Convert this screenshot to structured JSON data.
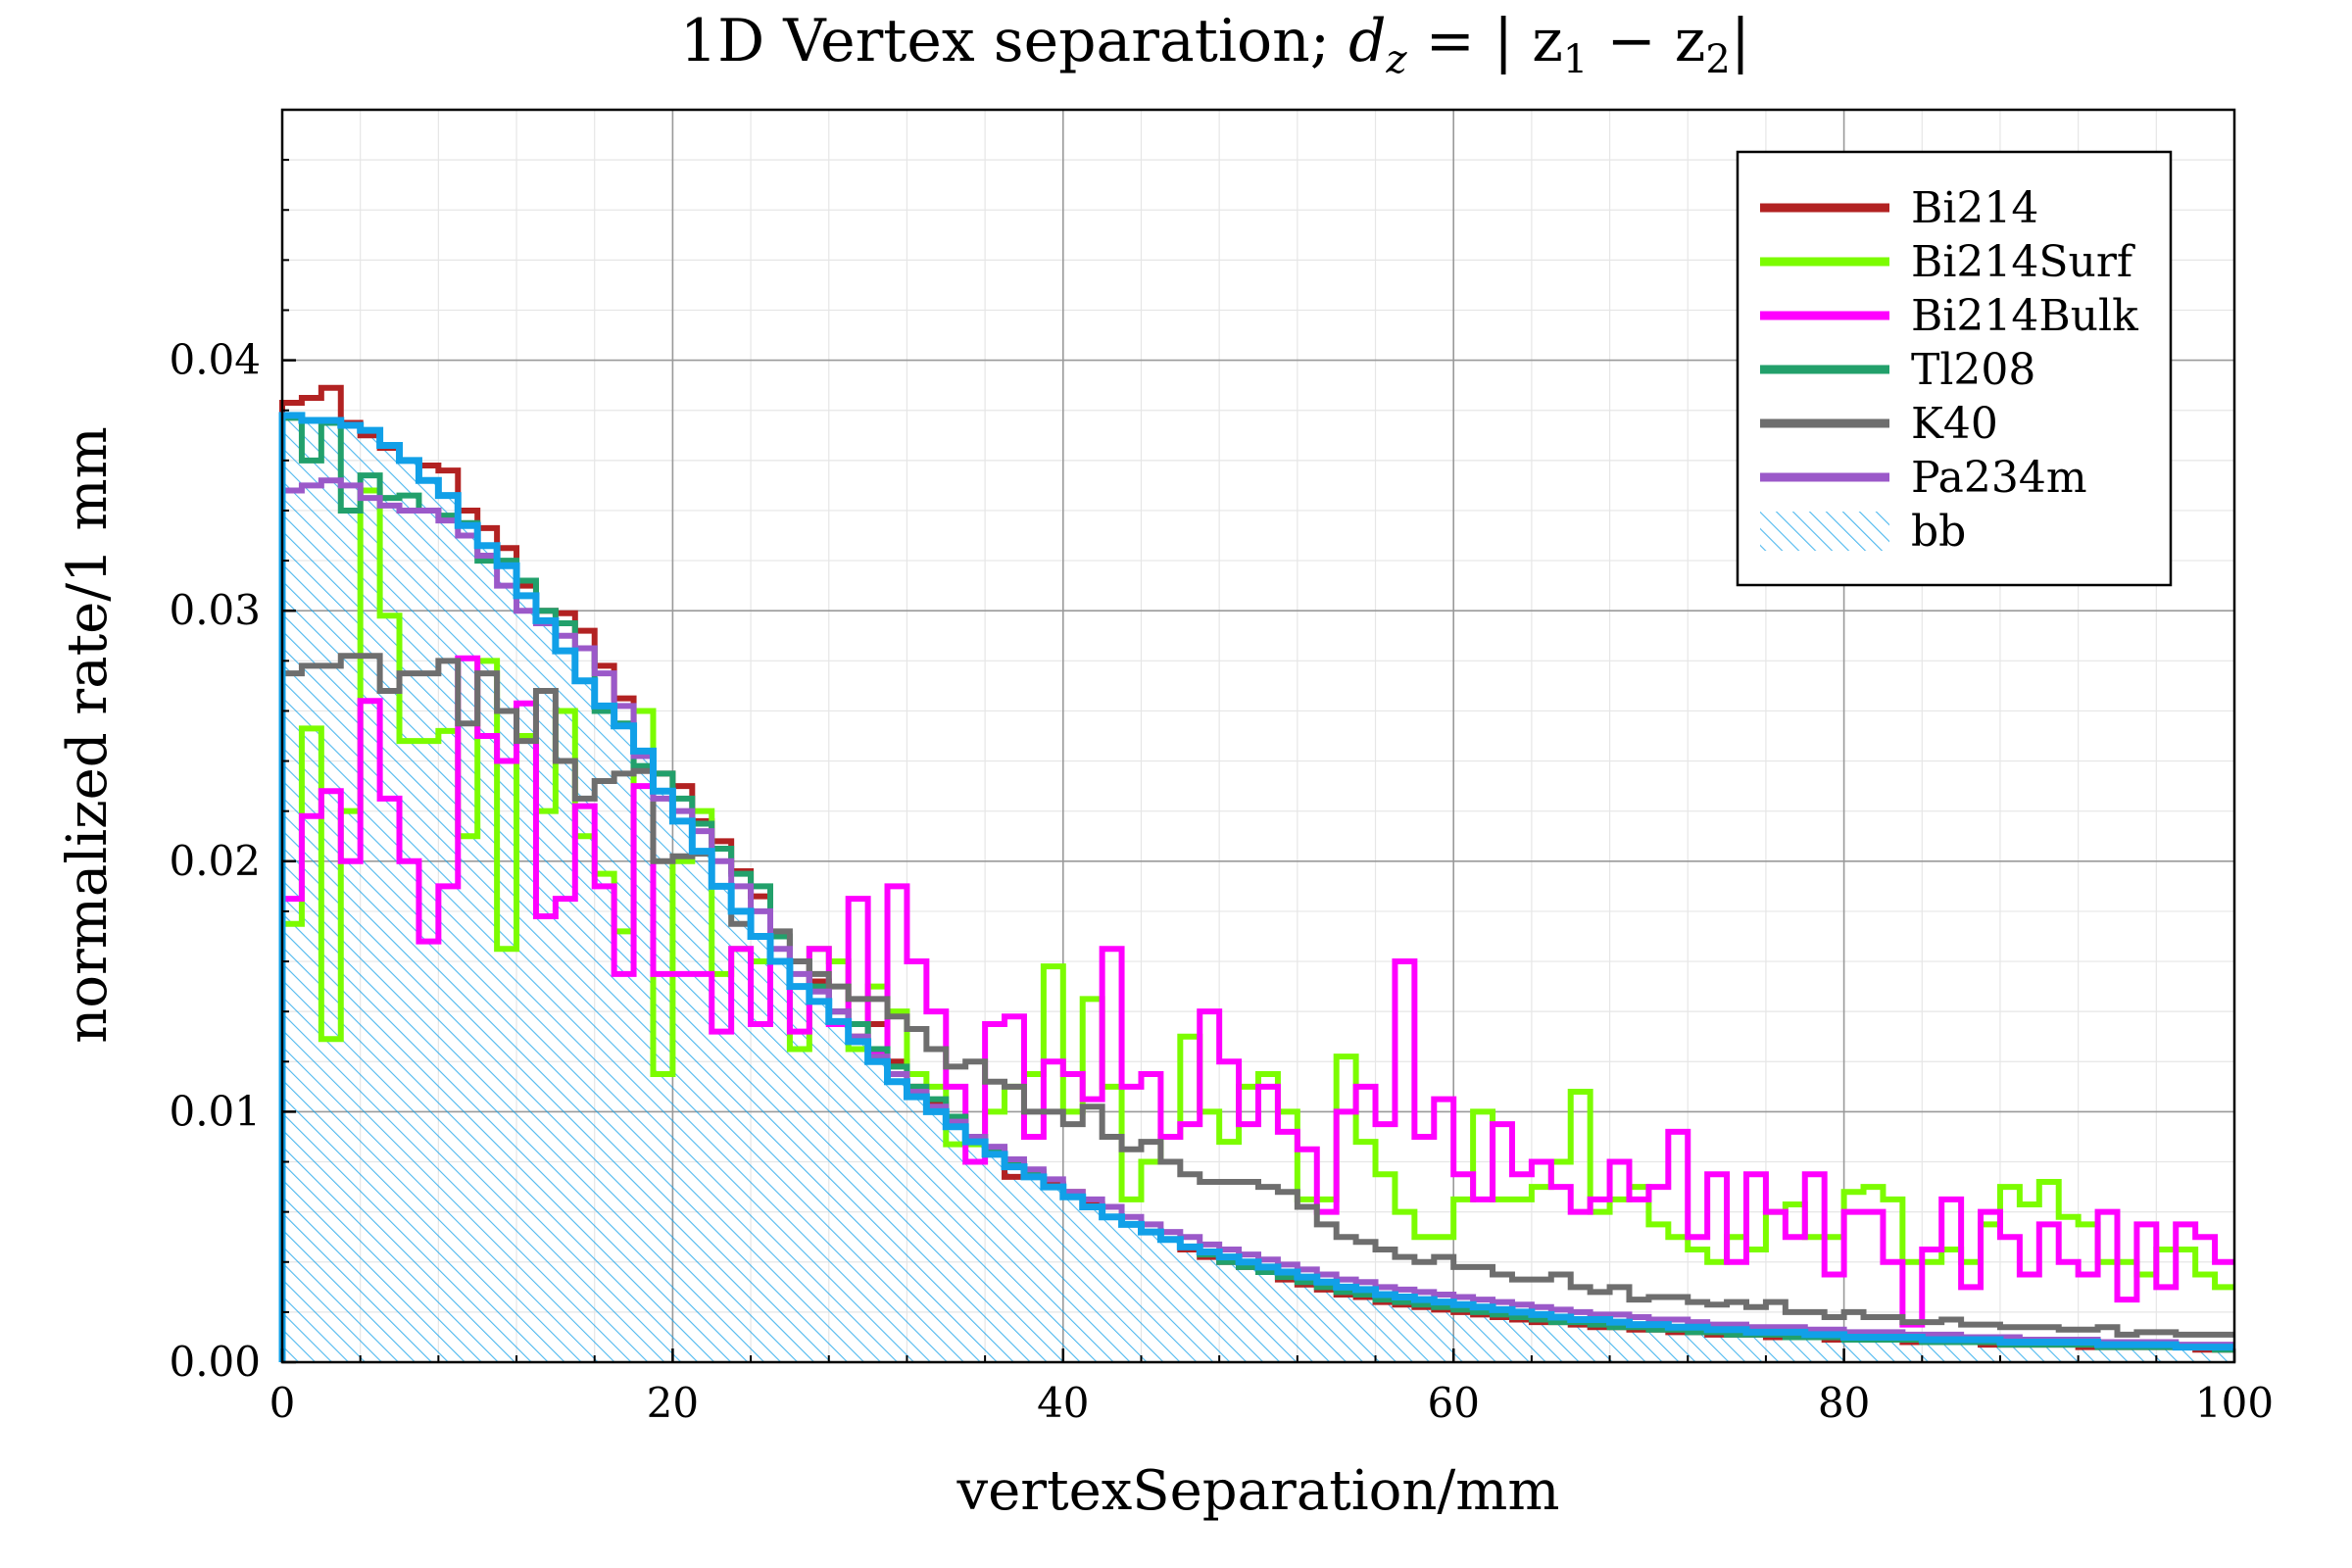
{
  "chart_data": {
    "type": "step-histogram",
    "title_text": "1D Vertex separation; ",
    "title_math": "d",
    "title_math_sub": "z",
    "title_math_rest": " = | z",
    "title_math_sub1": "1",
    "title_math_mid": " − z",
    "title_math_sub2": "2",
    "title_math_end": "|",
    "xlabel": "vertexSeparation/mm",
    "ylabel": "normalized rate/1 mm",
    "xlim": [
      0,
      100
    ],
    "ylim": [
      0,
      0.05
    ],
    "xticks": [
      0,
      20,
      40,
      60,
      80,
      100
    ],
    "xtick_labels": [
      "0",
      "20",
      "40",
      "60",
      "80",
      "100"
    ],
    "yticks": [
      0.0,
      0.01,
      0.02,
      0.03,
      0.04
    ],
    "ytick_labels": [
      "0.00",
      "0.01",
      "0.02",
      "0.03",
      "0.04"
    ],
    "grid": true,
    "legend_position": "top-right",
    "bin_width": 1,
    "series": [
      {
        "name": "Bi214",
        "color": "#b22222",
        "values": [
          0.0383,
          0.0385,
          0.0389,
          0.0375,
          0.037,
          0.0365,
          0.036,
          0.0358,
          0.0356,
          0.034,
          0.0333,
          0.0325,
          0.031,
          0.03,
          0.0299,
          0.0292,
          0.0278,
          0.0265,
          0.0242,
          0.0235,
          0.023,
          0.0216,
          0.0208,
          0.0196,
          0.0186,
          0.017,
          0.016,
          0.0152,
          0.014,
          0.013,
          0.0135,
          0.012,
          0.011,
          0.0103,
          0.0098,
          0.009,
          0.0085,
          0.0074,
          0.0075,
          0.0071,
          0.0068,
          0.0063,
          0.0058,
          0.0055,
          0.0052,
          0.0049,
          0.0045,
          0.0042,
          0.004,
          0.0038,
          0.0036,
          0.0033,
          0.0031,
          0.0029,
          0.0027,
          0.0026,
          0.0024,
          0.0023,
          0.0022,
          0.0021,
          0.002,
          0.0019,
          0.0018,
          0.0017,
          0.0016,
          0.0016,
          0.0015,
          0.0014,
          0.0014,
          0.0013,
          0.0013,
          0.0012,
          0.0012,
          0.0011,
          0.0011,
          0.0011,
          0.001,
          0.001,
          0.001,
          0.0009,
          0.0009,
          0.0009,
          0.0009,
          0.0008,
          0.0008,
          0.0008,
          0.0008,
          0.0007,
          0.0007,
          0.0007,
          0.0007,
          0.0007,
          0.0006,
          0.0006,
          0.0006,
          0.0006,
          0.0006,
          0.0006,
          0.0005,
          0.0005
        ]
      },
      {
        "name": "Bi214Surf",
        "color": "#7cfc00",
        "values": [
          0.0175,
          0.0253,
          0.0129,
          0.022,
          0.0348,
          0.0298,
          0.0248,
          0.0248,
          0.0252,
          0.021,
          0.028,
          0.0165,
          0.025,
          0.022,
          0.026,
          0.021,
          0.0195,
          0.0172,
          0.026,
          0.0115,
          0.02,
          0.022,
          0.0155,
          0.0165,
          0.016,
          0.016,
          0.0125,
          0.0165,
          0.016,
          0.0125,
          0.015,
          0.014,
          0.0115,
          0.011,
          0.0087,
          0.0087,
          0.01,
          0.011,
          0.0115,
          0.0158,
          0.01,
          0.0145,
          0.011,
          0.0065,
          0.008,
          0.009,
          0.013,
          0.01,
          0.0088,
          0.011,
          0.0115,
          0.01,
          0.0065,
          0.0065,
          0.0122,
          0.0088,
          0.0075,
          0.006,
          0.005,
          0.005,
          0.0065,
          0.01,
          0.0065,
          0.0065,
          0.007,
          0.008,
          0.0108,
          0.006,
          0.0065,
          0.007,
          0.0055,
          0.005,
          0.0045,
          0.004,
          0.005,
          0.0045,
          0.006,
          0.0063,
          0.005,
          0.005,
          0.0068,
          0.007,
          0.0065,
          0.004,
          0.004,
          0.0045,
          0.004,
          0.0055,
          0.007,
          0.0063,
          0.0072,
          0.0058,
          0.0055,
          0.004,
          0.004,
          0.0035,
          0.0045,
          0.0045,
          0.0035,
          0.003
        ]
      },
      {
        "name": "Bi214Bulk",
        "color": "#ff00ff",
        "values": [
          0.0185,
          0.0218,
          0.0228,
          0.02,
          0.0264,
          0.0225,
          0.02,
          0.0168,
          0.019,
          0.0281,
          0.025,
          0.024,
          0.0263,
          0.0178,
          0.0185,
          0.0222,
          0.019,
          0.0155,
          0.023,
          0.0155,
          0.0155,
          0.0155,
          0.0132,
          0.0165,
          0.0135,
          0.016,
          0.0132,
          0.0165,
          0.0135,
          0.0185,
          0.0123,
          0.019,
          0.016,
          0.014,
          0.011,
          0.008,
          0.0135,
          0.0138,
          0.009,
          0.012,
          0.0115,
          0.0105,
          0.0165,
          0.011,
          0.0115,
          0.009,
          0.0095,
          0.014,
          0.012,
          0.0095,
          0.011,
          0.0092,
          0.0085,
          0.006,
          0.01,
          0.011,
          0.0095,
          0.016,
          0.009,
          0.0105,
          0.0075,
          0.0065,
          0.0095,
          0.0075,
          0.008,
          0.007,
          0.006,
          0.0065,
          0.008,
          0.0065,
          0.007,
          0.0092,
          0.005,
          0.0075,
          0.004,
          0.0075,
          0.006,
          0.005,
          0.0075,
          0.0035,
          0.006,
          0.006,
          0.004,
          0.0015,
          0.0045,
          0.0065,
          0.003,
          0.006,
          0.005,
          0.0035,
          0.0055,
          0.004,
          0.0035,
          0.006,
          0.0025,
          0.0055,
          0.003,
          0.0055,
          0.005,
          0.004
        ]
      },
      {
        "name": "Tl208",
        "color": "#22a06b",
        "values": [
          0.0377,
          0.036,
          0.0375,
          0.034,
          0.0354,
          0.0345,
          0.0346,
          0.034,
          0.0338,
          0.0335,
          0.032,
          0.032,
          0.0312,
          0.03,
          0.0295,
          0.0285,
          0.026,
          0.0255,
          0.0238,
          0.0235,
          0.0225,
          0.0215,
          0.0205,
          0.0195,
          0.019,
          0.017,
          0.016,
          0.015,
          0.014,
          0.0135,
          0.0125,
          0.0118,
          0.011,
          0.0105,
          0.0098,
          0.009,
          0.0085,
          0.008,
          0.0076,
          0.007,
          0.0066,
          0.0062,
          0.0058,
          0.0055,
          0.0052,
          0.0049,
          0.0046,
          0.0043,
          0.004,
          0.0038,
          0.0036,
          0.0034,
          0.0032,
          0.003,
          0.0028,
          0.0027,
          0.0025,
          0.0024,
          0.0023,
          0.0022,
          0.0021,
          0.002,
          0.0019,
          0.0018,
          0.0017,
          0.0016,
          0.0016,
          0.0015,
          0.0014,
          0.0014,
          0.0013,
          0.0013,
          0.0012,
          0.0012,
          0.0011,
          0.0011,
          0.0011,
          0.001,
          0.001,
          0.001,
          0.0009,
          0.0009,
          0.0009,
          0.0009,
          0.0008,
          0.0008,
          0.0008,
          0.0008,
          0.0007,
          0.0007,
          0.0007,
          0.0007,
          0.0007,
          0.0006,
          0.0006,
          0.0006,
          0.0006,
          0.0006,
          0.0006,
          0.0005
        ]
      },
      {
        "name": "K40",
        "color": "#6e6e6e",
        "values": [
          0.0275,
          0.0278,
          0.0278,
          0.0282,
          0.0282,
          0.0268,
          0.0275,
          0.0275,
          0.028,
          0.0255,
          0.0275,
          0.026,
          0.0248,
          0.0268,
          0.024,
          0.0225,
          0.0232,
          0.0235,
          0.0236,
          0.02,
          0.0202,
          0.0203,
          0.019,
          0.0175,
          0.017,
          0.0172,
          0.016,
          0.0155,
          0.015,
          0.0145,
          0.0145,
          0.0138,
          0.0133,
          0.0125,
          0.0118,
          0.012,
          0.0112,
          0.011,
          0.01,
          0.01,
          0.0095,
          0.0102,
          0.009,
          0.0085,
          0.0088,
          0.008,
          0.0075,
          0.0072,
          0.0072,
          0.0072,
          0.007,
          0.0068,
          0.0062,
          0.0055,
          0.005,
          0.0048,
          0.0045,
          0.0042,
          0.004,
          0.0042,
          0.0038,
          0.0038,
          0.0035,
          0.0033,
          0.0033,
          0.0035,
          0.003,
          0.0028,
          0.003,
          0.0025,
          0.0026,
          0.0026,
          0.0024,
          0.0023,
          0.0024,
          0.0022,
          0.0024,
          0.002,
          0.002,
          0.0018,
          0.002,
          0.0018,
          0.0018,
          0.0016,
          0.0016,
          0.0017,
          0.0015,
          0.0015,
          0.0014,
          0.0014,
          0.0014,
          0.0013,
          0.0013,
          0.0014,
          0.0011,
          0.0012,
          0.0012,
          0.0011,
          0.0011,
          0.0011
        ]
      },
      {
        "name": "Pa234m",
        "color": "#9b59c9",
        "values": [
          0.0348,
          0.035,
          0.0352,
          0.035,
          0.0345,
          0.0342,
          0.034,
          0.034,
          0.0336,
          0.033,
          0.0322,
          0.031,
          0.03,
          0.0295,
          0.029,
          0.0285,
          0.0275,
          0.0262,
          0.0242,
          0.0225,
          0.022,
          0.0212,
          0.02,
          0.019,
          0.018,
          0.0165,
          0.0155,
          0.0148,
          0.014,
          0.013,
          0.0122,
          0.0115,
          0.0108,
          0.0102,
          0.0096,
          0.009,
          0.0086,
          0.0081,
          0.0077,
          0.0073,
          0.0068,
          0.0065,
          0.0062,
          0.0058,
          0.0055,
          0.0052,
          0.005,
          0.0047,
          0.0045,
          0.0043,
          0.0041,
          0.0039,
          0.0037,
          0.0035,
          0.0033,
          0.0032,
          0.003,
          0.0029,
          0.0028,
          0.0027,
          0.0026,
          0.0025,
          0.0024,
          0.0023,
          0.0022,
          0.0021,
          0.002,
          0.0019,
          0.0019,
          0.0018,
          0.0017,
          0.0017,
          0.0016,
          0.0015,
          0.0015,
          0.0014,
          0.0014,
          0.0014,
          0.0013,
          0.0013,
          0.0012,
          0.0012,
          0.0012,
          0.0011,
          0.0011,
          0.0011,
          0.001,
          0.001,
          0.001,
          0.0009,
          0.0009,
          0.0009,
          0.0009,
          0.0008,
          0.0008,
          0.0008,
          0.0008,
          0.0007,
          0.0007,
          0.0007
        ]
      },
      {
        "name": "bb",
        "color": "#11a0e8",
        "hatched": true,
        "values": [
          0.0378,
          0.0376,
          0.0376,
          0.0374,
          0.0372,
          0.0366,
          0.036,
          0.0352,
          0.0346,
          0.0334,
          0.0326,
          0.0318,
          0.0306,
          0.0296,
          0.0284,
          0.0272,
          0.0262,
          0.0254,
          0.0244,
          0.0228,
          0.0216,
          0.0204,
          0.019,
          0.018,
          0.017,
          0.016,
          0.015,
          0.0144,
          0.0136,
          0.0128,
          0.012,
          0.0112,
          0.0106,
          0.01,
          0.0094,
          0.0088,
          0.0083,
          0.0078,
          0.0074,
          0.007,
          0.0066,
          0.0062,
          0.0058,
          0.0055,
          0.0052,
          0.0049,
          0.0046,
          0.0044,
          0.0042,
          0.004,
          0.0038,
          0.0036,
          0.0034,
          0.0032,
          0.003,
          0.0029,
          0.0027,
          0.0026,
          0.0025,
          0.0024,
          0.0023,
          0.0022,
          0.0021,
          0.002,
          0.0019,
          0.0018,
          0.0017,
          0.0017,
          0.0016,
          0.0015,
          0.0015,
          0.0014,
          0.0014,
          0.0013,
          0.0013,
          0.0012,
          0.0012,
          0.0012,
          0.0011,
          0.0011,
          0.001,
          0.001,
          0.001,
          0.001,
          0.0009,
          0.0009,
          0.0009,
          0.0009,
          0.0008,
          0.0008,
          0.0008,
          0.0008,
          0.0008,
          0.0007,
          0.0007,
          0.0007,
          0.0007,
          0.0006,
          0.0006,
          0.0006
        ]
      }
    ]
  }
}
